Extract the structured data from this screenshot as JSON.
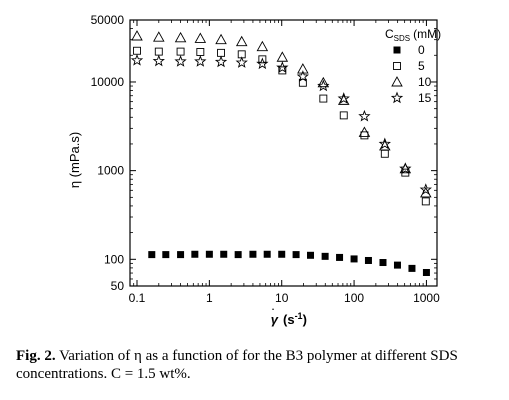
{
  "chart_data": {
    "type": "scatter",
    "xscale": "log",
    "yscale": "log",
    "xlim": [
      0.08,
      1400
    ],
    "ylim": [
      50,
      50000
    ],
    "xticks": [
      0.1,
      1,
      10,
      100,
      1000
    ],
    "xtick_labels": [
      "0.1",
      "1",
      "10",
      "100",
      "1000"
    ],
    "yticks": [
      50,
      100,
      1000,
      10000,
      50000
    ],
    "ytick_labels": [
      "50",
      "100",
      "1000",
      "10000",
      "50000"
    ],
    "xlabel_symbol": "γ",
    "xlabel_units": "(s",
    "xlabel_sup": "-1",
    "xlabel_close": ")",
    "ylabel": "η (mPa.s)",
    "legend": {
      "title_main": "C",
      "title_sub": "SDS",
      "title_units": "(mM)",
      "placement": "top-right"
    },
    "series": [
      {
        "name": "0",
        "marker": "filled-square",
        "x": [
          0.16,
          0.25,
          0.4,
          0.63,
          1.0,
          1.58,
          2.5,
          4.0,
          6.3,
          10,
          15.8,
          25,
          39.8,
          63,
          100,
          158,
          251,
          398,
          631,
          1000
        ],
        "y": [
          113,
          113,
          113,
          114,
          114,
          114,
          113,
          114,
          114,
          114,
          113,
          111,
          108,
          105,
          101,
          97,
          92,
          86,
          79,
          71
        ]
      },
      {
        "name": "5",
        "marker": "open-square",
        "x": [
          0.1,
          0.2,
          0.4,
          0.75,
          1.45,
          2.8,
          5.4,
          10.2,
          19.6,
          37.6,
          72,
          139,
          266,
          511,
          980
        ],
        "y": [
          22500,
          22000,
          22000,
          21800,
          21300,
          20500,
          18000,
          13500,
          9800,
          6500,
          4200,
          2500,
          1550,
          950,
          450
        ]
      },
      {
        "name": "10",
        "marker": "open-triangle",
        "x": [
          0.1,
          0.2,
          0.4,
          0.75,
          1.45,
          2.8,
          5.4,
          10.2,
          19.6,
          37.6,
          72,
          139,
          266,
          511,
          980
        ],
        "y": [
          33000,
          32000,
          31500,
          31000,
          30000,
          28500,
          25000,
          19000,
          14000,
          9800,
          6200,
          2700,
          1900,
          1050,
          560
        ]
      },
      {
        "name": "15",
        "marker": "open-star",
        "x": [
          0.1,
          0.2,
          0.4,
          0.75,
          1.45,
          2.8,
          5.4,
          10.2,
          19.6,
          37.6,
          72,
          139,
          266,
          511,
          980
        ],
        "y": [
          17500,
          17200,
          17000,
          17000,
          16800,
          16500,
          16000,
          14500,
          11500,
          9000,
          6500,
          4100,
          2000,
          1050,
          610
        ]
      }
    ]
  },
  "caption": {
    "fig_label": "Fig. 2.",
    "text": " Variation of η as a function of for the B3 polymer at different SDS concentrations. C = 1.5 wt%."
  }
}
